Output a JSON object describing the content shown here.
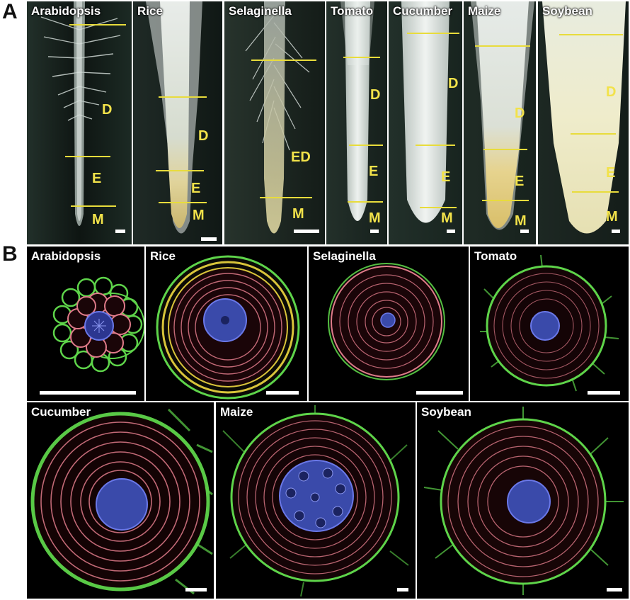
{
  "figure": {
    "panel_a_letter": "A",
    "panel_b_letter": "B",
    "colors": {
      "zone_line": "#e8dc3c",
      "zone_text": "#f2e24a",
      "epidermis": "#5ed44a",
      "cortex": "#e07b8a",
      "stele": "#6a78e8",
      "endodermis_rice": "#d8c43a"
    }
  },
  "panel_a": {
    "species": [
      {
        "name": "Arabidopsis",
        "zones": [
          "D",
          "E",
          "M"
        ]
      },
      {
        "name": "Rice",
        "zones": [
          "D",
          "E",
          "M"
        ]
      },
      {
        "name": "Selaginella",
        "zones": [
          "ED",
          "M"
        ]
      },
      {
        "name": "Tomato",
        "zones": [
          "D",
          "E",
          "M"
        ]
      },
      {
        "name": "Cucumber",
        "zones": [
          "D",
          "E",
          "M"
        ]
      },
      {
        "name": "Maize",
        "zones": [
          "D",
          "E",
          "M"
        ]
      },
      {
        "name": "Soybean",
        "zones": [
          "D",
          "E",
          "M"
        ]
      }
    ]
  },
  "panel_b": {
    "species": [
      {
        "name": "Arabidopsis"
      },
      {
        "name": "Rice"
      },
      {
        "name": "Selaginella"
      },
      {
        "name": "Tomato"
      },
      {
        "name": "Cucumber"
      },
      {
        "name": "Maize"
      },
      {
        "name": "Soybean"
      }
    ]
  }
}
